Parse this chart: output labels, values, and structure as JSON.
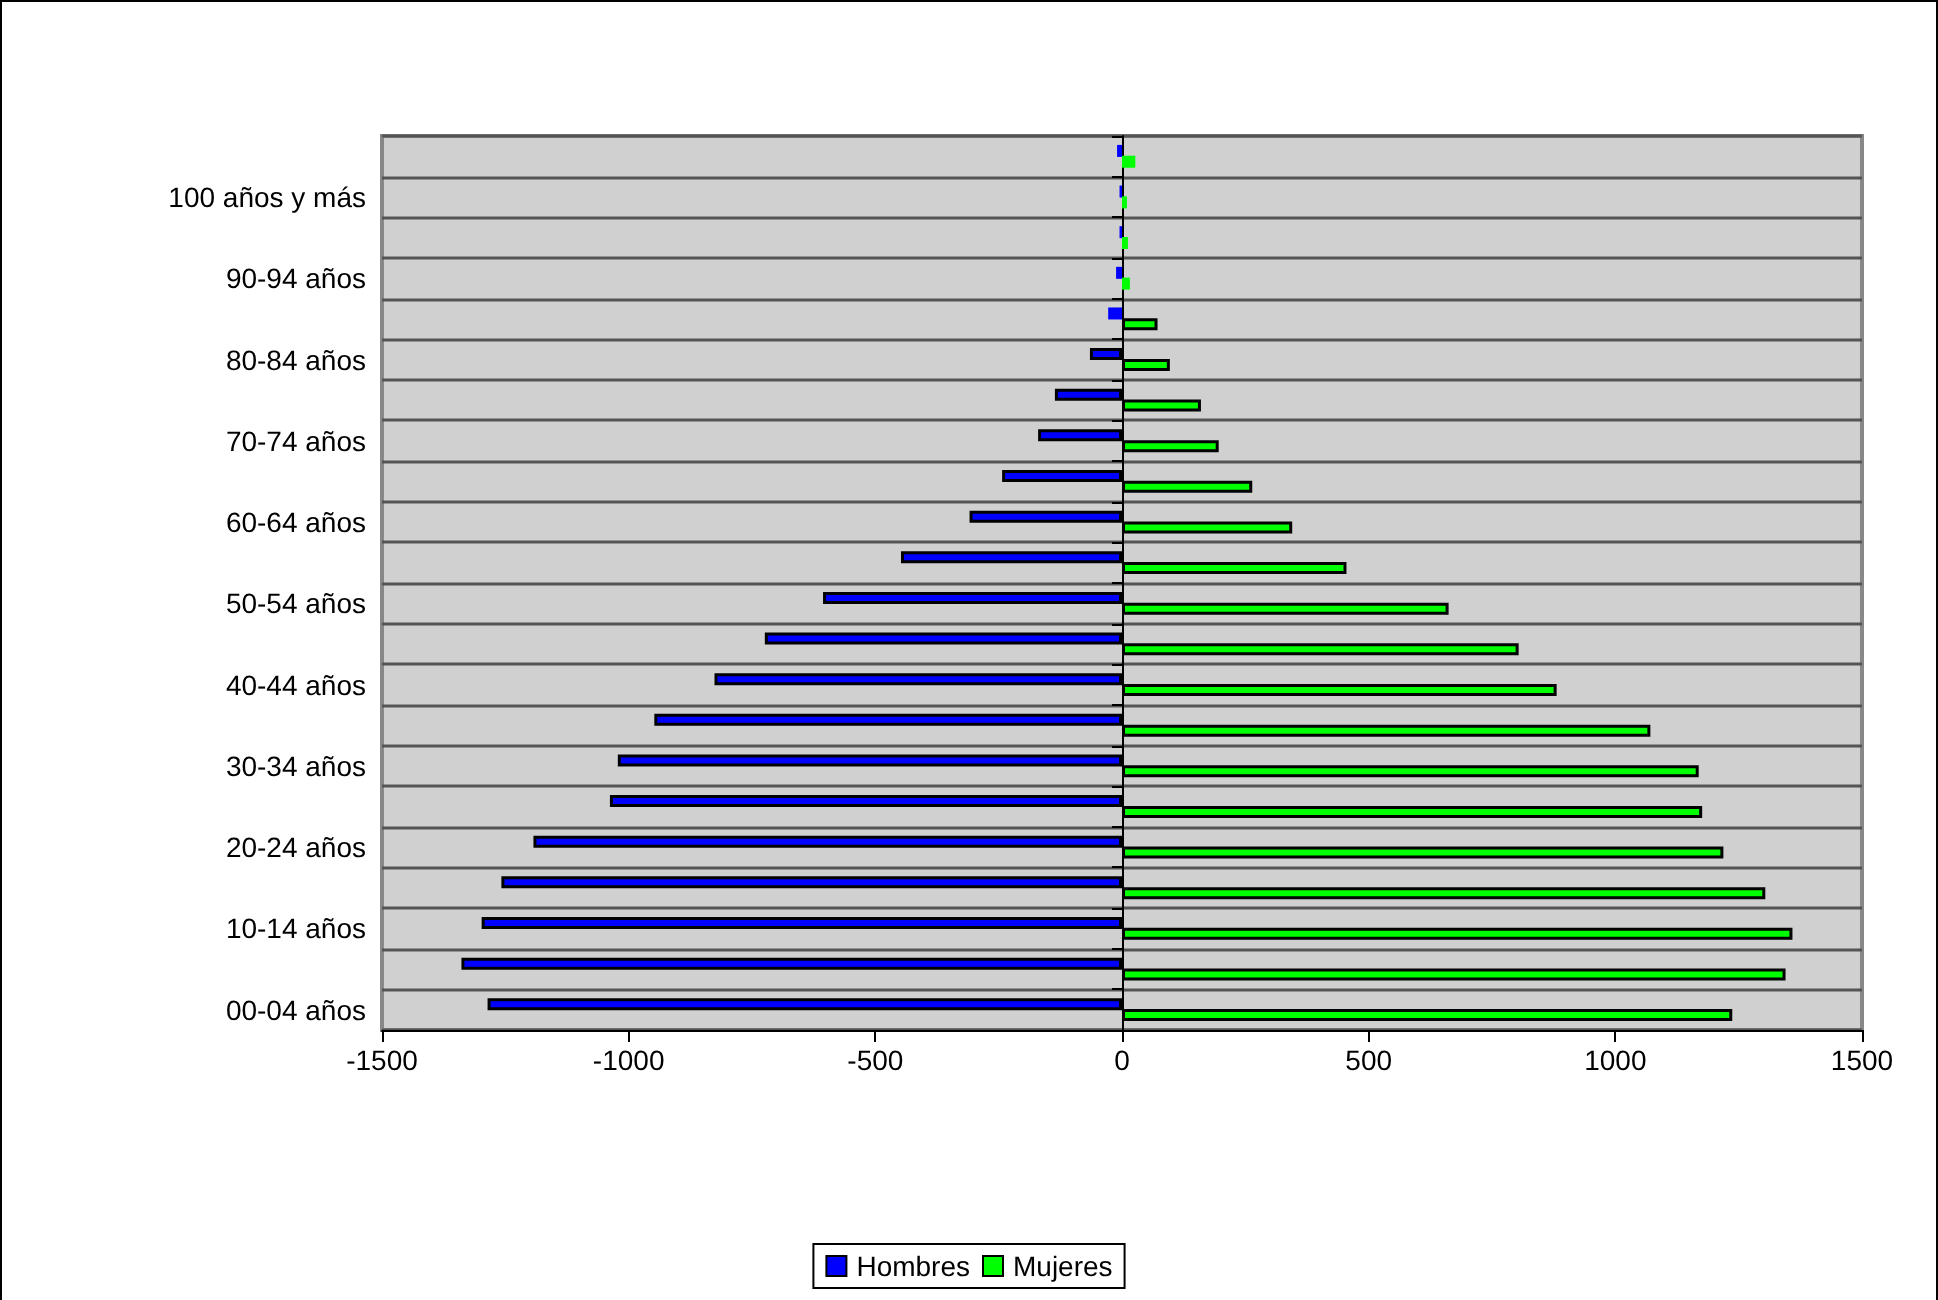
{
  "chart_data": {
    "type": "bar",
    "orientation": "horizontal",
    "categories": [
      null,
      "100 años y más",
      null,
      "90-94 años",
      null,
      "80-84 años",
      null,
      "70-74 años",
      null,
      "60-64 años",
      null,
      "50-54 años",
      null,
      "40-44 años",
      null,
      "30-34 años",
      null,
      "20-24 años",
      null,
      "10-14 años",
      null,
      "00-04 años"
    ],
    "series": [
      {
        "name": "Hombres",
        "color": "#0000ff",
        "values": [
          -10,
          -5,
          -5,
          -12,
          -28,
          -65,
          -136,
          -170,
          -243,
          -309,
          -448,
          -606,
          -724,
          -826,
          -948,
          -1022,
          -1038,
          -1193,
          -1258,
          -1298,
          -1339,
          -1286
        ]
      },
      {
        "name": "Mujeres",
        "color": "#00ff00",
        "values": [
          27,
          10,
          12,
          16,
          72,
          97,
          160,
          196,
          264,
          345,
          455,
          662,
          804,
          881,
          1071,
          1169,
          1176,
          1219,
          1304,
          1359,
          1345,
          1237
        ]
      }
    ],
    "xlim": [
      -1500,
      1500
    ],
    "xticks": [
      -1500,
      -1000,
      -500,
      0,
      500,
      1000,
      1500
    ],
    "grid": "y",
    "legend": "bottom"
  }
}
